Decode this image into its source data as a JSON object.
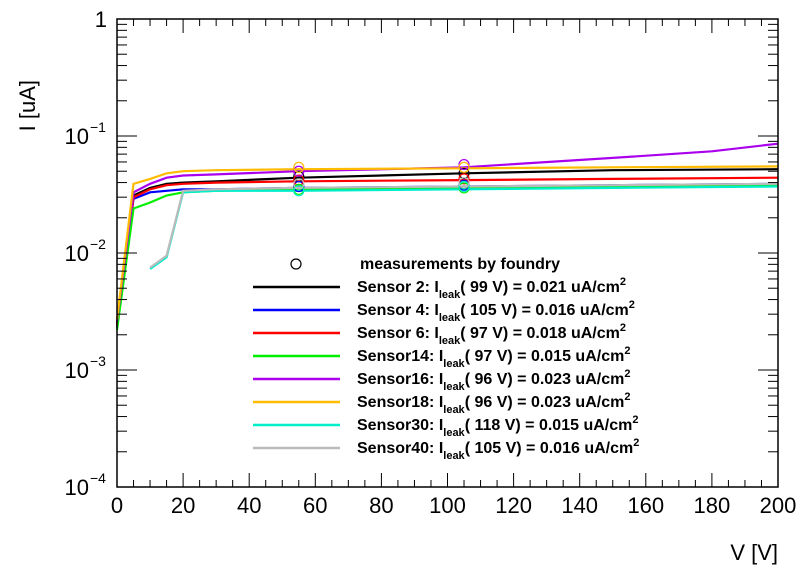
{
  "chart_data": {
    "type": "line",
    "xlabel": "V [V]",
    "ylabel": "I [uA]",
    "xlim": [
      0,
      200
    ],
    "ylim": [
      0.0001,
      1
    ],
    "yscale": "log",
    "grid": false,
    "legend_placement": "bottom-right",
    "x_ticks": [
      {
        "value": 0,
        "label": "0"
      },
      {
        "value": 20,
        "label": "20"
      },
      {
        "value": 40,
        "label": "40"
      },
      {
        "value": 60,
        "label": "60"
      },
      {
        "value": 80,
        "label": "80"
      },
      {
        "value": 100,
        "label": "100"
      },
      {
        "value": 120,
        "label": "120"
      },
      {
        "value": 140,
        "label": "140"
      },
      {
        "value": 160,
        "label": "160"
      },
      {
        "value": 180,
        "label": "180"
      },
      {
        "value": 200,
        "label": "200"
      }
    ],
    "y_ticks": [
      {
        "value": 1,
        "label": "1",
        "exp": ""
      },
      {
        "value": 0.1,
        "label": "10",
        "exp": "−1"
      },
      {
        "value": 0.01,
        "label": "10",
        "exp": "−2"
      },
      {
        "value": 0.001,
        "label": "10",
        "exp": "−3"
      },
      {
        "value": 0.0001,
        "label": "10",
        "exp": "−4"
      }
    ],
    "markers_legend": "measurements by foundry",
    "series": [
      {
        "name": "Sensor 2",
        "color": "#000000",
        "legend_prefix": "Sensor 2: I",
        "legend_sub": "leak",
        "legend_suffix": "(  99 V) = 0.021 uA/cm",
        "legend_sup": "2",
        "x": [
          0,
          5,
          10,
          15,
          20,
          30,
          55,
          105,
          150,
          200
        ],
        "y": [
          0.0025,
          0.031,
          0.036,
          0.039,
          0.04,
          0.041,
          0.044,
          0.048,
          0.051,
          0.052
        ],
        "markers": [
          {
            "x": 55,
            "y": 0.045
          },
          {
            "x": 105,
            "y": 0.048
          }
        ]
      },
      {
        "name": "Sensor 4",
        "color": "#0000ff",
        "legend_prefix": "Sensor 4: I",
        "legend_sub": "leak",
        "legend_suffix": "( 105 V) = 0.016 uA/cm",
        "legend_sup": "2",
        "x": [
          0,
          5,
          10,
          15,
          20,
          30,
          55,
          105,
          150,
          200
        ],
        "y": [
          0.0023,
          0.029,
          0.033,
          0.034,
          0.035,
          0.035,
          0.036,
          0.037,
          0.038,
          0.039
        ],
        "markers": [
          {
            "x": 55,
            "y": 0.037
          },
          {
            "x": 105,
            "y": 0.038
          }
        ]
      },
      {
        "name": "Sensor 6",
        "color": "#ff0000",
        "legend_prefix": "Sensor 6: I",
        "legend_sub": "leak",
        "legend_suffix": "(  97 V) = 0.018 uA/cm",
        "legend_sup": "2",
        "x": [
          0,
          5,
          10,
          15,
          20,
          30,
          55,
          105,
          150,
          200
        ],
        "y": [
          0.0024,
          0.03,
          0.035,
          0.038,
          0.039,
          0.04,
          0.041,
          0.042,
          0.043,
          0.044
        ],
        "markers": [
          {
            "x": 55,
            "y": 0.042
          },
          {
            "x": 105,
            "y": 0.043
          }
        ]
      },
      {
        "name": "Sensor14",
        "color": "#00ee00",
        "legend_prefix": "Sensor14: I",
        "legend_sub": "leak",
        "legend_suffix": "(  97 V) = 0.015 uA/cm",
        "legend_sup": "2",
        "x": [
          0,
          5,
          10,
          15,
          20,
          30,
          55,
          105,
          150,
          200
        ],
        "y": [
          0.0022,
          0.024,
          0.027,
          0.031,
          0.033,
          0.034,
          0.035,
          0.036,
          0.037,
          0.038
        ],
        "markers": [
          {
            "x": 55,
            "y": 0.035
          },
          {
            "x": 105,
            "y": 0.036
          }
        ]
      },
      {
        "name": "Sensor16",
        "color": "#aa00ee",
        "legend_prefix": "Sensor16: I",
        "legend_sub": "leak",
        "legend_suffix": "(  96 V) = 0.023 uA/cm",
        "legend_sup": "2",
        "x": [
          0,
          5,
          10,
          15,
          20,
          30,
          55,
          105,
          150,
          180,
          200
        ],
        "y": [
          0.0026,
          0.033,
          0.039,
          0.044,
          0.046,
          0.047,
          0.05,
          0.054,
          0.065,
          0.074,
          0.086
        ],
        "markers": [
          {
            "x": 55,
            "y": 0.05
          },
          {
            "x": 105,
            "y": 0.057
          }
        ]
      },
      {
        "name": "Sensor18",
        "color": "#ffbb00",
        "legend_prefix": "Sensor18: I",
        "legend_sub": "leak",
        "legend_suffix": "(  96 V) = 0.023 uA/cm",
        "legend_sup": "2",
        "x": [
          0,
          5,
          10,
          15,
          20,
          30,
          55,
          105,
          150,
          200
        ],
        "y": [
          0.0027,
          0.039,
          0.043,
          0.048,
          0.05,
          0.051,
          0.052,
          0.053,
          0.054,
          0.055
        ],
        "markers": [
          {
            "x": 55,
            "y": 0.054
          },
          {
            "x": 105,
            "y": 0.054
          }
        ]
      },
      {
        "name": "Sensor30",
        "color": "#00eecc",
        "legend_prefix": "Sensor30: I",
        "legend_sub": "leak",
        "legend_suffix": "( 118 V) = 0.015 uA/cm",
        "legend_sup": "2",
        "x": [
          10,
          15,
          20,
          30,
          55,
          105,
          150,
          200
        ],
        "y": [
          0.0073,
          0.0092,
          0.033,
          0.034,
          0.034,
          0.035,
          0.036,
          0.037
        ],
        "markers": [
          {
            "x": 55,
            "y": 0.034
          },
          {
            "x": 105,
            "y": 0.037
          }
        ]
      },
      {
        "name": "Sensor40",
        "color": "#bbbbbb",
        "legend_prefix": "Sensor40: I",
        "legend_sub": "leak",
        "legend_suffix": "( 105 V) = 0.016 uA/cm",
        "legend_sup": "2",
        "x": [
          10,
          15,
          20,
          30,
          55,
          105,
          150,
          200
        ],
        "y": [
          0.0075,
          0.0095,
          0.034,
          0.035,
          0.036,
          0.037,
          0.038,
          0.039
        ],
        "markers": [
          {
            "x": 55,
            "y": 0.039
          },
          {
            "x": 105,
            "y": 0.04
          }
        ]
      }
    ]
  }
}
